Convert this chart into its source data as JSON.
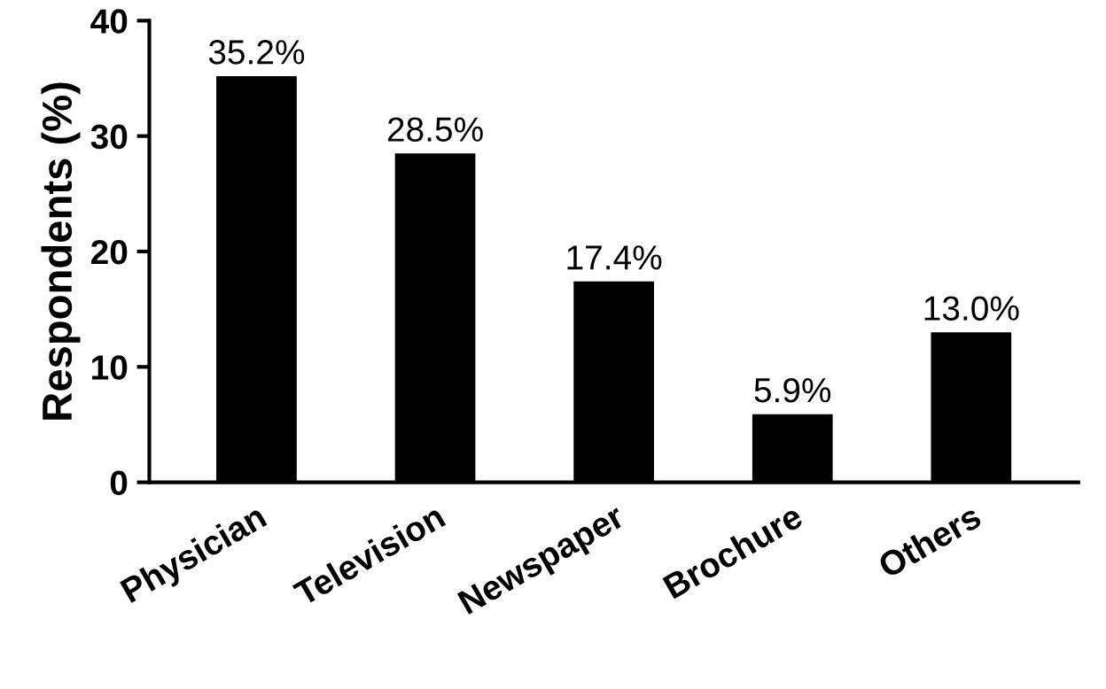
{
  "chart_data": {
    "type": "bar",
    "ylabel": "Respondents (%)",
    "categories": [
      "Physician",
      "Television",
      "Newspaper",
      "Brochure",
      "Others"
    ],
    "values": [
      35.2,
      28.5,
      17.4,
      5.9,
      13.0
    ],
    "value_labels": [
      "35.2%",
      "28.5%",
      "17.4%",
      "5.9%",
      "13.0%"
    ],
    "color": "#000000",
    "ylim": [
      0,
      40
    ],
    "yticks": [
      0,
      10,
      20,
      30,
      40
    ],
    "grid": false,
    "legend": false
  }
}
